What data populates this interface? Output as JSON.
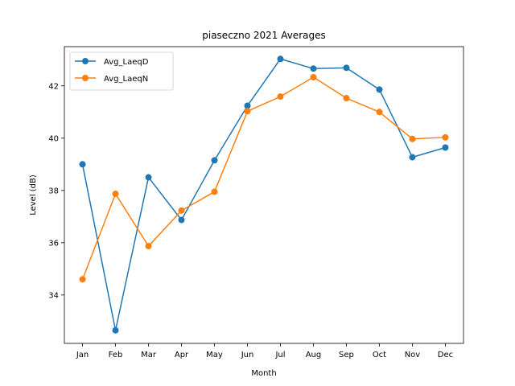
{
  "chart_data": {
    "type": "line",
    "title": "piaseczno 2021 Averages",
    "xlabel": "Month",
    "ylabel": "Level (dB)",
    "categories": [
      "Jan",
      "Feb",
      "Mar",
      "Apr",
      "May",
      "Jun",
      "Jul",
      "Aug",
      "Sep",
      "Oct",
      "Nov",
      "Dec"
    ],
    "yticks": [
      34,
      36,
      38,
      40,
      42
    ],
    "ylim": [
      32.15,
      43.5
    ],
    "grid": false,
    "legend_position": "top-left",
    "series": [
      {
        "name": "Avg_LaeqD",
        "color": "#1f77b4",
        "values": [
          39.0,
          32.65,
          38.5,
          36.87,
          39.15,
          41.24,
          43.03,
          42.66,
          42.69,
          41.86,
          39.27,
          39.64
        ]
      },
      {
        "name": "Avg_LaeqN",
        "color": "#ff7f0e",
        "values": [
          34.6,
          37.87,
          35.87,
          37.23,
          37.95,
          41.03,
          41.59,
          42.33,
          41.53,
          41.0,
          39.97,
          40.03
        ]
      }
    ]
  }
}
